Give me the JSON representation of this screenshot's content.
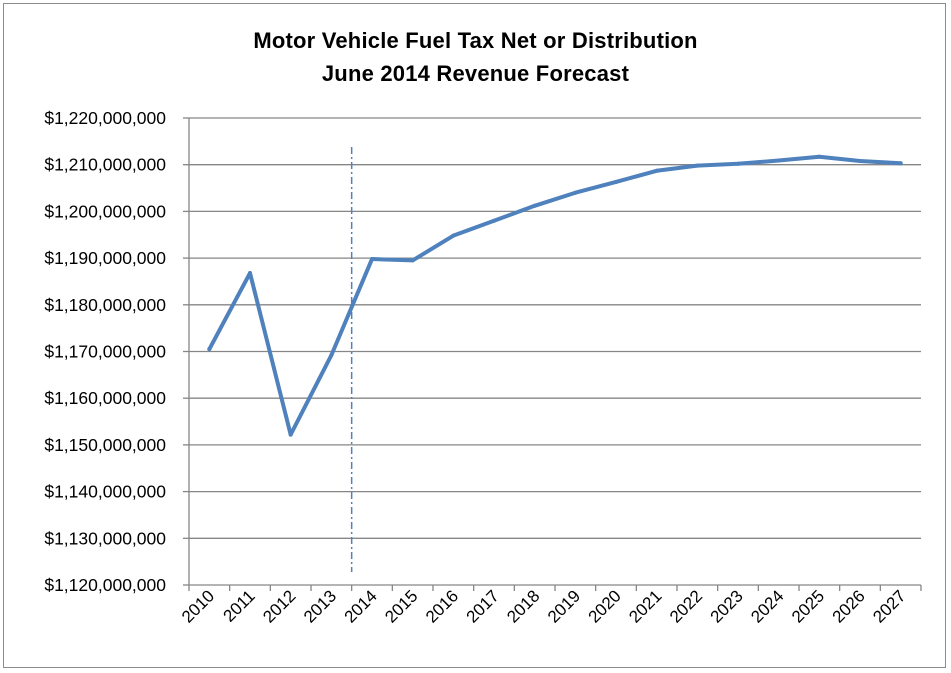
{
  "chart_data": {
    "type": "line",
    "title": "Motor Vehicle Fuel Tax Net or Distribution",
    "subtitle": "June 2014 Revenue Forecast",
    "xlabel": "",
    "ylabel": "",
    "categories": [
      "2010",
      "2011",
      "2012",
      "2013",
      "2014",
      "2015",
      "2016",
      "2017",
      "2018",
      "2019",
      "2020",
      "2021",
      "2022",
      "2023",
      "2024",
      "2025",
      "2026",
      "2027"
    ],
    "series": [
      {
        "values": [
          1170500000,
          1186800000,
          1152200000,
          1169200000,
          1189800000,
          1189500000,
          1194800000,
          1198000000,
          1201200000,
          1204000000,
          1206300000,
          1208700000,
          1209800000,
          1210200000,
          1210900000,
          1211700000,
          1210800000,
          1210300000
        ]
      }
    ],
    "y_ticks": [
      "$1,120,000,000",
      "$1,130,000,000",
      "$1,140,000,000",
      "$1,150,000,000",
      "$1,160,000,000",
      "$1,170,000,000",
      "$1,180,000,000",
      "$1,190,000,000",
      "$1,200,000,000",
      "$1,210,000,000",
      "$1,220,000,000"
    ],
    "ylim": [
      1120000000,
      1220000000
    ],
    "y_step": 10000000,
    "forecast_divider_at": "2014",
    "grid": true,
    "legend": "none",
    "colors": {
      "line": "#4f81bd",
      "divider": "#4f81bd",
      "grid": "#868686",
      "axis": "#868686"
    }
  }
}
